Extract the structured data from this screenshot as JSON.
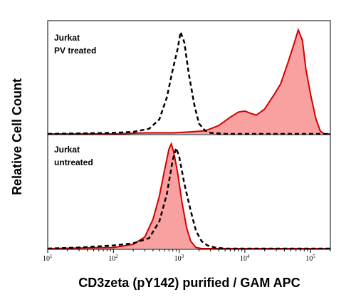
{
  "chart_data": {
    "type": "area",
    "x_scale": "log",
    "xlim": [
      10,
      200000
    ],
    "xlabel": "CD3zeta (pY142) purified / GAM APC",
    "ylabel": "Relative Cell Count",
    "x_ticks": [
      {
        "value": 10,
        "base": "10",
        "exp": "1"
      },
      {
        "value": 100,
        "base": "10",
        "exp": "2"
      },
      {
        "value": 1000,
        "base": "10",
        "exp": "3"
      },
      {
        "value": 10000,
        "base": "10",
        "exp": "4"
      },
      {
        "value": 100000,
        "base": "10",
        "exp": "5"
      }
    ],
    "panels": [
      {
        "label_lines": [
          "Jurkat",
          "PV treated"
        ],
        "ylim": [
          0,
          1
        ],
        "stained": {
          "color": "#d40000",
          "fill": "#f9a1a1",
          "points": [
            [
              10,
              0.0
            ],
            [
              30,
              0.0
            ],
            [
              100,
              0.0
            ],
            [
              300,
              0.01
            ],
            [
              800,
              0.01
            ],
            [
              1500,
              0.02
            ],
            [
              2500,
              0.03
            ],
            [
              4000,
              0.08
            ],
            [
              6000,
              0.16
            ],
            [
              8000,
              0.21
            ],
            [
              10000,
              0.22
            ],
            [
              12000,
              0.2
            ],
            [
              15000,
              0.18
            ],
            [
              20000,
              0.24
            ],
            [
              28000,
              0.38
            ],
            [
              35000,
              0.48
            ],
            [
              45000,
              0.68
            ],
            [
              55000,
              0.85
            ],
            [
              65000,
              1.0
            ],
            [
              75000,
              0.9
            ],
            [
              85000,
              0.62
            ],
            [
              100000,
              0.38
            ],
            [
              120000,
              0.15
            ],
            [
              140000,
              0.03
            ],
            [
              160000,
              0.0
            ],
            [
              200000,
              0.0
            ]
          ]
        },
        "control": {
          "color": "#000000",
          "style": "dashed",
          "points": [
            [
              10,
              0.0
            ],
            [
              100,
              0.01
            ],
            [
              200,
              0.02
            ],
            [
              350,
              0.05
            ],
            [
              500,
              0.14
            ],
            [
              650,
              0.35
            ],
            [
              800,
              0.62
            ],
            [
              950,
              0.82
            ],
            [
              1050,
              0.98
            ],
            [
              1200,
              0.88
            ],
            [
              1400,
              0.58
            ],
            [
              1700,
              0.28
            ],
            [
              2000,
              0.1
            ],
            [
              2500,
              0.03
            ],
            [
              3000,
              0.01
            ],
            [
              5000,
              0.0
            ],
            [
              200000,
              0.0
            ]
          ]
        }
      },
      {
        "label_lines": [
          "Jurkat",
          "untreated"
        ],
        "ylim": [
          0,
          1
        ],
        "stained": {
          "color": "#d40000",
          "fill": "#f9a1a1",
          "points": [
            [
              10,
              0.0
            ],
            [
              100,
              0.01
            ],
            [
              200,
              0.04
            ],
            [
              300,
              0.11
            ],
            [
              400,
              0.28
            ],
            [
              500,
              0.5
            ],
            [
              600,
              0.75
            ],
            [
              700,
              0.95
            ],
            [
              760,
              1.0
            ],
            [
              830,
              0.92
            ],
            [
              950,
              0.72
            ],
            [
              1100,
              0.45
            ],
            [
              1300,
              0.2
            ],
            [
              1500,
              0.07
            ],
            [
              1800,
              0.01
            ],
            [
              2200,
              0.0
            ],
            [
              200000,
              0.0
            ]
          ]
        },
        "control": {
          "color": "#000000",
          "style": "dashed",
          "points": [
            [
              10,
              0.0
            ],
            [
              30,
              0.01
            ],
            [
              100,
              0.03
            ],
            [
              200,
              0.05
            ],
            [
              350,
              0.1
            ],
            [
              500,
              0.26
            ],
            [
              650,
              0.52
            ],
            [
              800,
              0.85
            ],
            [
              900,
              0.96
            ],
            [
              1000,
              0.88
            ],
            [
              1200,
              0.62
            ],
            [
              1500,
              0.36
            ],
            [
              1800,
              0.17
            ],
            [
              2200,
              0.07
            ],
            [
              2700,
              0.03
            ],
            [
              3500,
              0.01
            ],
            [
              5000,
              0.0
            ],
            [
              200000,
              0.0
            ]
          ]
        }
      }
    ]
  }
}
